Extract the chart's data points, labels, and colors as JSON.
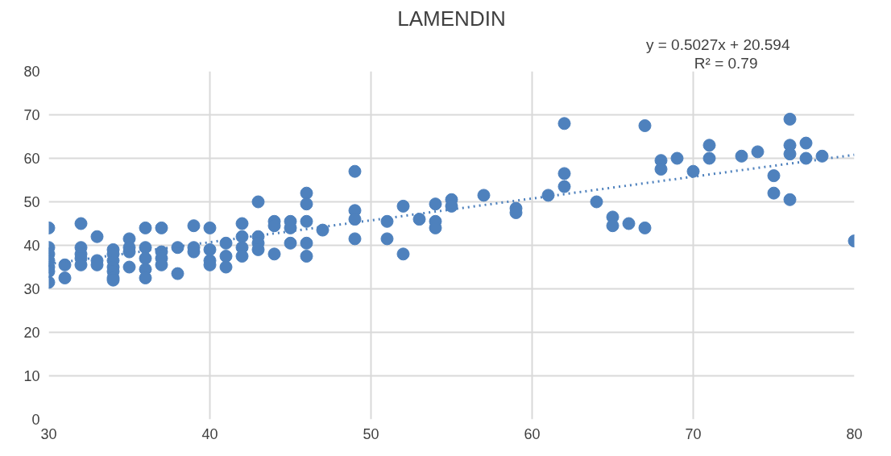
{
  "chart_data": {
    "type": "scatter",
    "title": "LAMENDIN",
    "annotations": [
      "y = 0.5027x + 20.594",
      "R² = 0.79"
    ],
    "xlim": [
      30,
      80
    ],
    "ylim": [
      0,
      80
    ],
    "xticks": [
      30,
      40,
      50,
      60,
      70,
      80
    ],
    "yticks": [
      0,
      10,
      20,
      30,
      40,
      50,
      60,
      70,
      80
    ],
    "grid": true,
    "series": [
      {
        "color": "#4e81bd",
        "marker": "circle",
        "x": [
          30,
          30,
          30,
          30,
          30,
          30,
          30,
          31,
          31,
          32,
          32,
          32,
          32,
          32,
          33,
          33,
          33,
          34,
          34,
          34,
          34,
          34,
          34,
          34,
          35,
          35,
          35,
          35,
          36,
          36,
          36,
          36,
          36,
          37,
          37,
          37,
          37,
          38,
          38,
          39,
          39,
          39,
          40,
          40,
          40,
          40,
          41,
          41,
          41,
          42,
          42,
          42,
          42,
          43,
          43,
          43,
          43,
          44,
          44,
          44,
          45,
          45,
          45,
          46,
          46,
          46,
          46,
          46,
          47,
          49,
          49,
          49,
          49,
          51,
          51,
          52,
          52,
          53,
          54,
          54,
          54,
          55,
          55,
          57,
          59,
          59,
          61,
          62,
          62,
          62,
          64,
          65,
          65,
          66,
          67,
          67,
          68,
          68,
          69,
          70,
          71,
          71,
          73,
          74,
          75,
          75,
          76,
          76,
          76,
          76,
          77,
          77,
          78,
          80
        ],
        "values": [
          44,
          39.5,
          38,
          36.5,
          35,
          34,
          31.5,
          35.5,
          32.5,
          45,
          39.5,
          38,
          37,
          35.5,
          42,
          36.5,
          35.5,
          39,
          38,
          36.5,
          35,
          34,
          32.5,
          32,
          41.5,
          39.5,
          38.5,
          35,
          44,
          39.5,
          37,
          34.5,
          32.5,
          44,
          38.5,
          37,
          35.5,
          39.5,
          33.5,
          44.5,
          39.5,
          38.5,
          44,
          39,
          36.5,
          35.5,
          40.5,
          37.5,
          35,
          45,
          42,
          39.5,
          37.5,
          50,
          42,
          40.5,
          39,
          45.5,
          44.5,
          38,
          45.5,
          44,
          40.5,
          52,
          49.5,
          45.5,
          40.5,
          37.5,
          43.5,
          57,
          48,
          46,
          41.5,
          45.5,
          41.5,
          49,
          38,
          46,
          49.5,
          45.5,
          44,
          50.5,
          49,
          51.5,
          48.5,
          47.5,
          51.5,
          68,
          56.5,
          53.5,
          50,
          46.5,
          44.5,
          45,
          67.5,
          44,
          59.5,
          57.5,
          60,
          57,
          63,
          60,
          60.5,
          61.5,
          56,
          52,
          69,
          63,
          61,
          50.5,
          63.5,
          60,
          60.5,
          41
        ]
      },
      {
        "type": "line",
        "color": "#4e81bd",
        "line_style": "dotted",
        "x": [
          30,
          80
        ],
        "values": [
          35.7,
          60.8
        ]
      }
    ]
  }
}
